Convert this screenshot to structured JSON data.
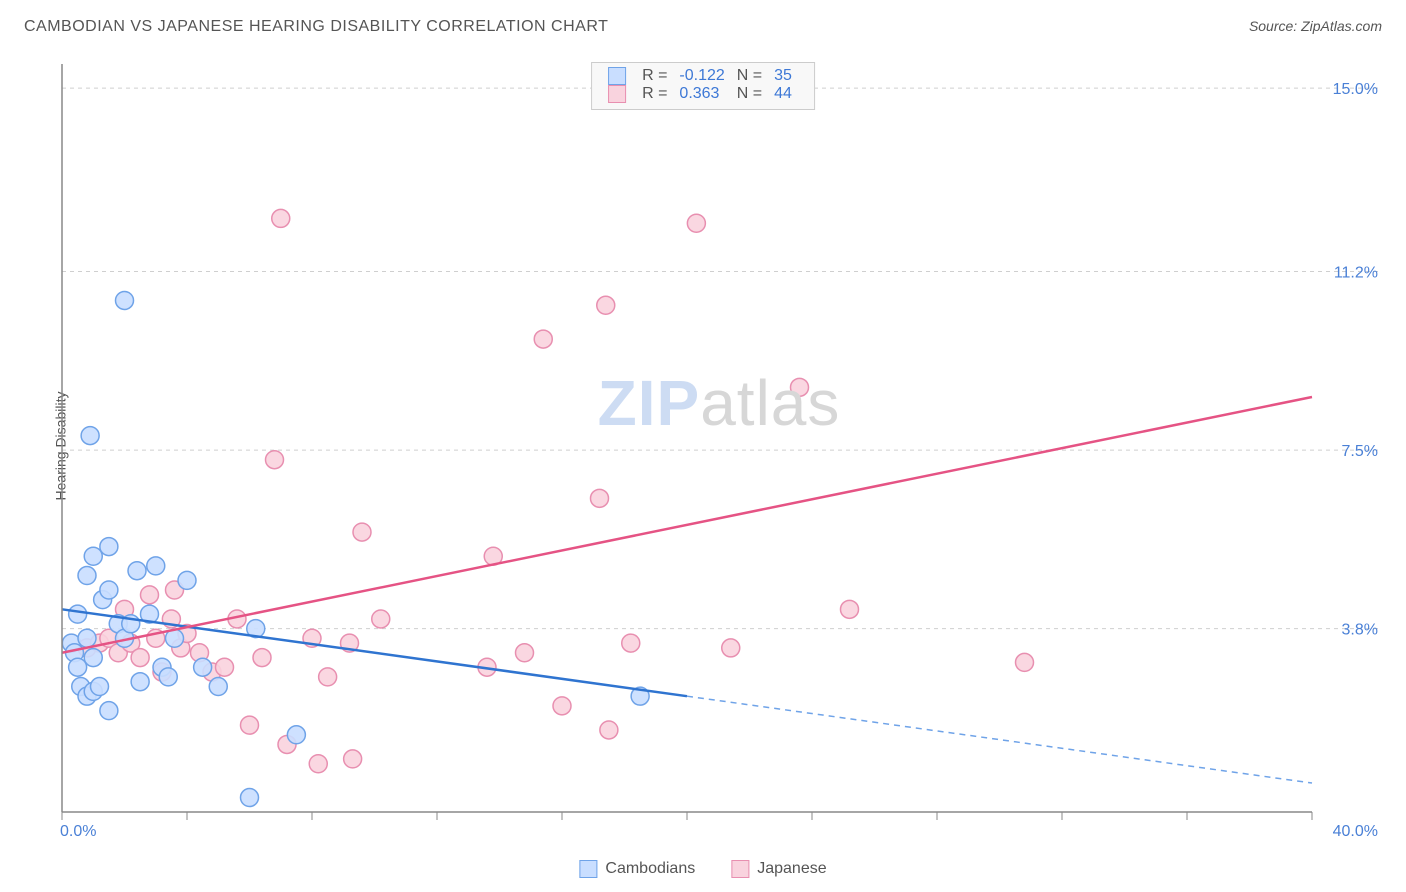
{
  "title": "CAMBODIAN VS JAPANESE HEARING DISABILITY CORRELATION CHART",
  "source_label": "Source: ZipAtlas.com",
  "ylabel": "Hearing Disability",
  "watermark": {
    "part1": "ZIP",
    "part2": "atlas"
  },
  "chart": {
    "type": "scatter",
    "background_color": "#ffffff",
    "grid_color": "#cfcfcf",
    "axis_color": "#888888",
    "xlim": [
      0,
      40
    ],
    "ylim": [
      0,
      15.5
    ],
    "x_tick_positions": [
      0,
      4,
      8,
      12,
      16,
      20,
      24,
      28,
      32,
      36,
      40
    ],
    "x_tick_labels_shown": {
      "left": "0.0%",
      "right": "40.0%"
    },
    "y_gridlines": [
      3.8,
      7.5,
      11.2,
      15.0
    ],
    "y_tick_labels": [
      "3.8%",
      "7.5%",
      "11.2%",
      "15.0%"
    ],
    "tick_label_color": "#4a80d6",
    "tick_label_fontsize": 16,
    "series": [
      {
        "name": "Cambodians",
        "marker_fill": "#c9deff",
        "marker_stroke": "#6fa3e8",
        "marker_radius": 9,
        "trend_color": "#2f74d0",
        "trend_dash_color": "#6fa3e8",
        "trend_solid_until_x": 20,
        "trend": {
          "y_at_x0": 4.2,
          "y_at_xmax": 0.6
        },
        "R": "-0.122",
        "N": "35",
        "points": [
          [
            0.3,
            3.5
          ],
          [
            0.4,
            3.3
          ],
          [
            0.5,
            3.0
          ],
          [
            0.6,
            2.6
          ],
          [
            0.8,
            2.4
          ],
          [
            0.5,
            4.1
          ],
          [
            0.8,
            3.6
          ],
          [
            1.0,
            3.2
          ],
          [
            1.0,
            2.5
          ],
          [
            1.2,
            2.6
          ],
          [
            1.3,
            4.4
          ],
          [
            0.8,
            4.9
          ],
          [
            1.0,
            5.3
          ],
          [
            1.5,
            5.5
          ],
          [
            1.5,
            4.6
          ],
          [
            1.8,
            3.9
          ],
          [
            2.0,
            3.6
          ],
          [
            2.2,
            3.9
          ],
          [
            2.4,
            5.0
          ],
          [
            2.5,
            2.7
          ],
          [
            2.8,
            4.1
          ],
          [
            3.0,
            5.1
          ],
          [
            3.2,
            3.0
          ],
          [
            3.4,
            2.8
          ],
          [
            3.6,
            3.6
          ],
          [
            4.0,
            4.8
          ],
          [
            4.5,
            3.0
          ],
          [
            5.0,
            2.6
          ],
          [
            6.0,
            0.3
          ],
          [
            6.2,
            3.8
          ],
          [
            7.5,
            1.6
          ],
          [
            2.0,
            10.6
          ],
          [
            0.9,
            7.8
          ],
          [
            1.5,
            2.1
          ],
          [
            18.5,
            2.4
          ]
        ]
      },
      {
        "name": "Japanese",
        "marker_fill": "#f9d3de",
        "marker_stroke": "#e88fb0",
        "marker_radius": 9,
        "trend_color": "#e55384",
        "trend": {
          "y_at_x0": 3.3,
          "y_at_xmax": 8.6
        },
        "R": "0.363",
        "N": "44",
        "points": [
          [
            0.8,
            3.4
          ],
          [
            1.2,
            3.5
          ],
          [
            1.5,
            3.6
          ],
          [
            1.8,
            3.3
          ],
          [
            2.0,
            4.2
          ],
          [
            2.2,
            3.5
          ],
          [
            2.5,
            3.2
          ],
          [
            2.8,
            4.5
          ],
          [
            3.0,
            3.6
          ],
          [
            3.2,
            2.9
          ],
          [
            3.5,
            4.0
          ],
          [
            3.8,
            3.4
          ],
          [
            4.0,
            3.7
          ],
          [
            4.4,
            3.3
          ],
          [
            4.8,
            2.9
          ],
          [
            5.2,
            3.0
          ],
          [
            5.6,
            4.0
          ],
          [
            6.0,
            1.8
          ],
          [
            6.4,
            3.2
          ],
          [
            6.8,
            7.3
          ],
          [
            7.2,
            1.4
          ],
          [
            8.0,
            3.6
          ],
          [
            8.2,
            1.0
          ],
          [
            8.5,
            2.8
          ],
          [
            9.2,
            3.5
          ],
          [
            9.3,
            1.1
          ],
          [
            9.6,
            5.8
          ],
          [
            10.2,
            4.0
          ],
          [
            13.6,
            3.0
          ],
          [
            13.8,
            5.3
          ],
          [
            14.8,
            3.3
          ],
          [
            15.4,
            9.8
          ],
          [
            16.0,
            2.2
          ],
          [
            17.2,
            6.5
          ],
          [
            17.5,
            1.7
          ],
          [
            18.2,
            3.5
          ],
          [
            17.4,
            10.5
          ],
          [
            7.0,
            12.3
          ],
          [
            20.3,
            12.2
          ],
          [
            21.4,
            3.4
          ],
          [
            23.6,
            8.8
          ],
          [
            25.2,
            4.2
          ],
          [
            30.8,
            3.1
          ],
          [
            3.6,
            4.6
          ]
        ]
      }
    ]
  },
  "legend_top": {
    "rows": [
      {
        "swatch_fill": "#c9deff",
        "swatch_stroke": "#6fa3e8",
        "r_label": "R =",
        "r_value": "-0.122",
        "n_label": "N =",
        "n_value": "35"
      },
      {
        "swatch_fill": "#f9d3de",
        "swatch_stroke": "#e88fb0",
        "r_label": "R =",
        "r_value": "0.363",
        "n_label": "N =",
        "n_value": "44"
      }
    ]
  },
  "legend_bottom": {
    "items": [
      {
        "swatch_fill": "#c9deff",
        "swatch_stroke": "#6fa3e8",
        "label": "Cambodians"
      },
      {
        "swatch_fill": "#f9d3de",
        "swatch_stroke": "#e88fb0",
        "label": "Japanese"
      }
    ]
  }
}
